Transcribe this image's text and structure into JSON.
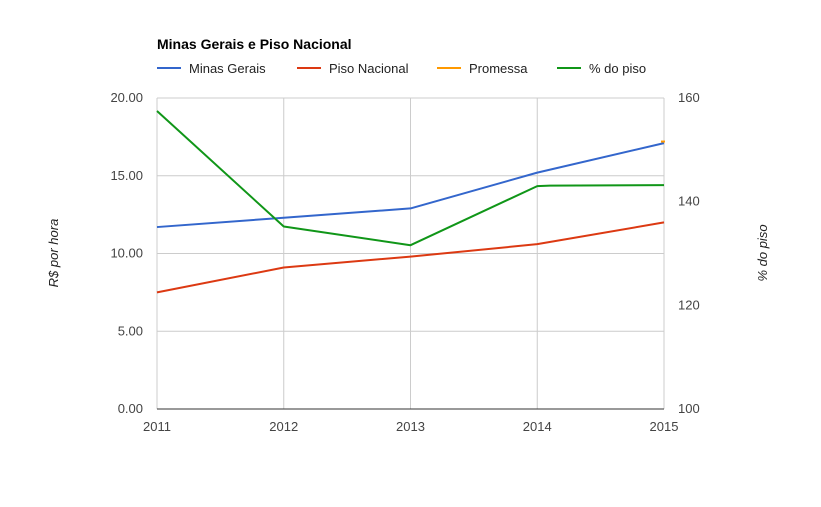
{
  "chart_data": {
    "type": "line",
    "title": "Minas Gerais e Piso Nacional",
    "x": [
      "2011",
      "2012",
      "2013",
      "2014",
      "2015"
    ],
    "ylabel": "R$ por hora",
    "y2label": "% do piso",
    "ylim": [
      0,
      20
    ],
    "y2lim": [
      100,
      160
    ],
    "yticks": [
      "0.00",
      "5.00",
      "10.00",
      "15.00",
      "20.00"
    ],
    "y2ticks": [
      "100",
      "120",
      "140",
      "160"
    ],
    "grid": true,
    "legend_position": "top",
    "series": [
      {
        "name": "Minas Gerais",
        "color": "#3366cc",
        "axis": "left",
        "x": [
          2011,
          2012,
          2013,
          2014,
          2015
        ],
        "values": [
          11.7,
          12.3,
          12.9,
          15.2,
          17.1
        ]
      },
      {
        "name": "Piso Nacional",
        "color": "#dc3912",
        "axis": "left",
        "x": [
          2011,
          2012,
          2013,
          2014,
          2015
        ],
        "values": [
          7.5,
          9.1,
          9.8,
          10.6,
          12.0
        ]
      },
      {
        "name": "Promessa",
        "color": "#ff9900",
        "axis": "left",
        "x": [
          2015
        ],
        "values": [
          17.2
        ]
      },
      {
        "name": "% do piso",
        "color": "#109618",
        "axis": "right",
        "x": [
          2011,
          2012,
          2013,
          2014,
          2014.1,
          2015
        ],
        "values": [
          157.5,
          135.2,
          131.6,
          143.0,
          143.1,
          143.2
        ]
      }
    ]
  }
}
